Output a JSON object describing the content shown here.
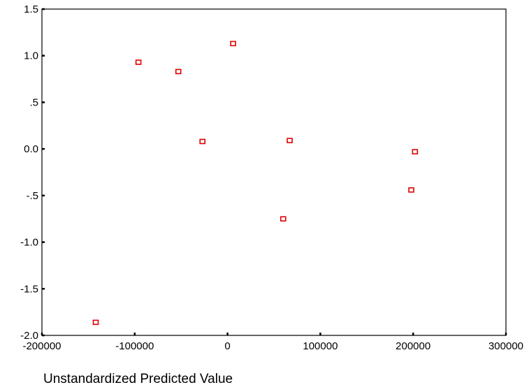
{
  "chart_data": {
    "type": "scatter",
    "title": "",
    "xlabel": "Unstandardized Predicted Value",
    "ylabel": "",
    "xlim": [
      -200000,
      300000
    ],
    "ylim": [
      -2.0,
      1.5
    ],
    "xticks": [
      -200000,
      -100000,
      0,
      100000,
      200000,
      300000
    ],
    "xtick_labels": [
      "-200000",
      "-100000",
      "0",
      "100000",
      "200000",
      "300000"
    ],
    "yticks": [
      1.5,
      1.0,
      0.5,
      0.0,
      -0.5,
      -1.0,
      -1.5,
      -2.0
    ],
    "ytick_labels": [
      "1.5",
      "1.0",
      ".5",
      "0.0",
      "-.5",
      "-1.0",
      "-1.5",
      "-2.0"
    ],
    "grid": false,
    "marker": "hollow-square",
    "marker_color": "#e00000",
    "points": [
      {
        "x": -142000,
        "y": -1.86
      },
      {
        "x": -96000,
        "y": 0.93
      },
      {
        "x": -53000,
        "y": 0.83
      },
      {
        "x": -27000,
        "y": 0.08
      },
      {
        "x": 6000,
        "y": 1.13
      },
      {
        "x": 60000,
        "y": -0.75
      },
      {
        "x": 67000,
        "y": 0.09
      },
      {
        "x": 198000,
        "y": -0.44
      },
      {
        "x": 202000,
        "y": -0.03
      }
    ]
  }
}
